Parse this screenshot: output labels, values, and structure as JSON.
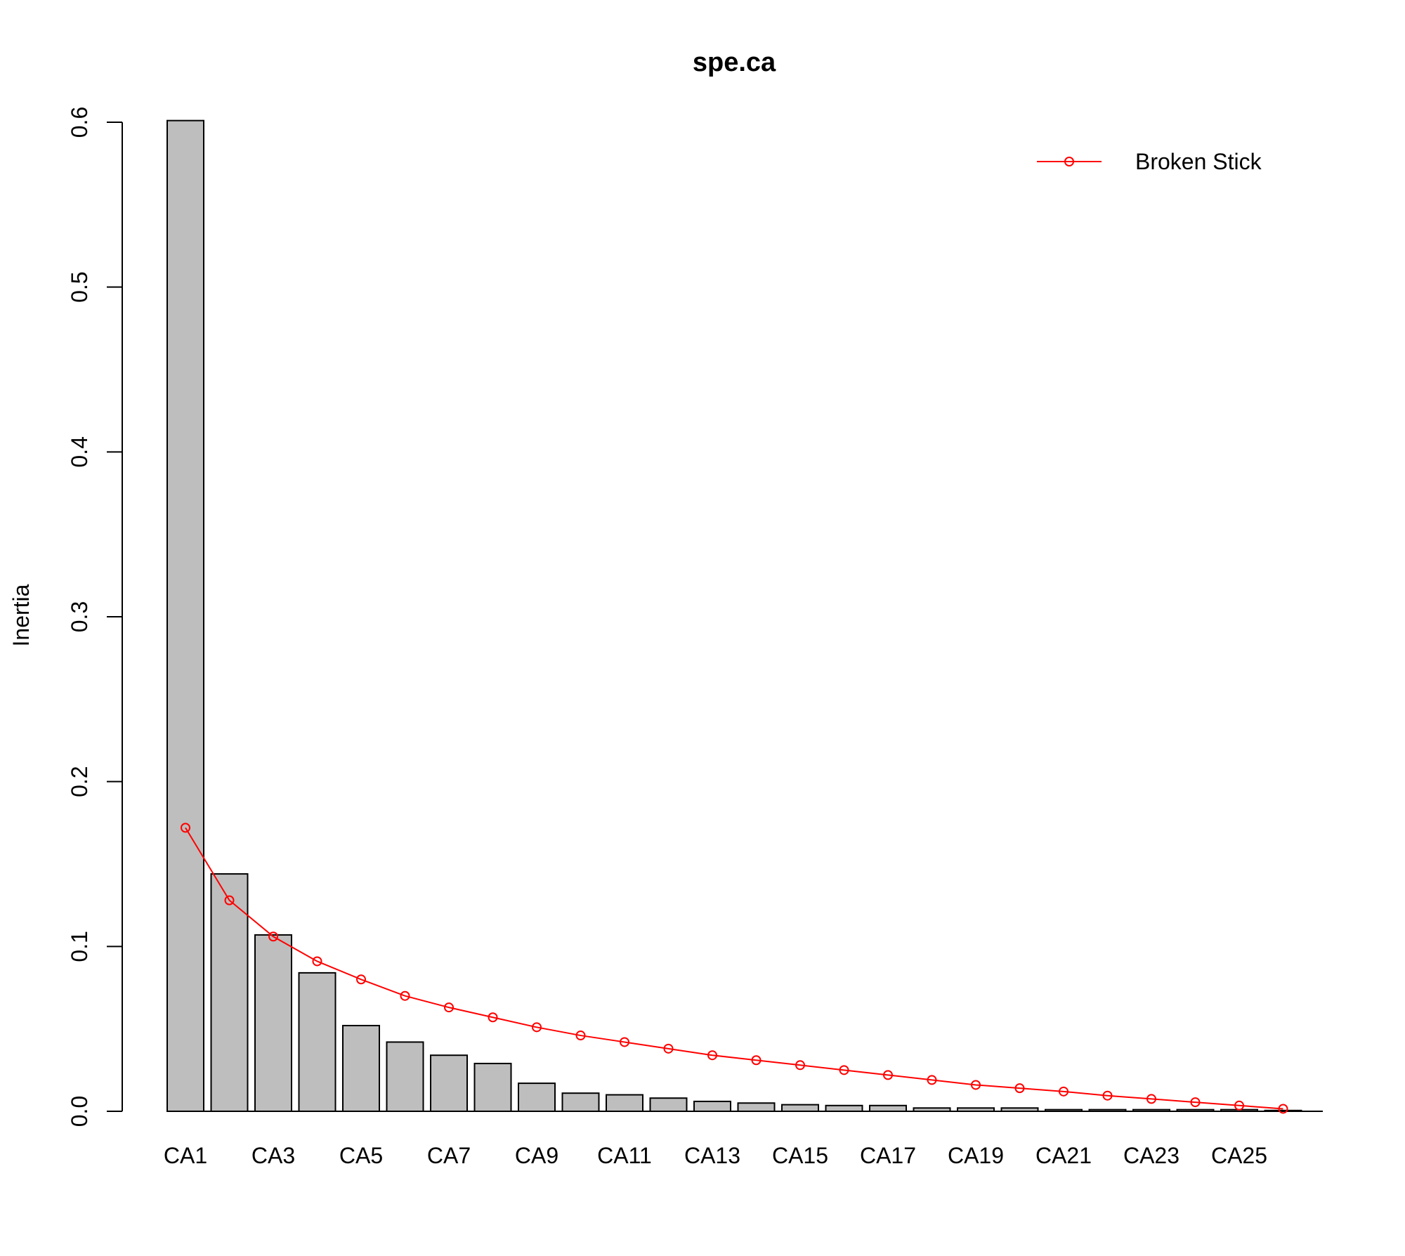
{
  "chart_data": {
    "type": "bar",
    "title": "spe.ca",
    "xlabel": "",
    "ylabel": "Inertia",
    "ylim": [
      0,
      0.6
    ],
    "yticks": [
      0.0,
      0.1,
      0.2,
      0.3,
      0.4,
      0.5,
      0.6
    ],
    "ytick_labels": [
      "0.0",
      "0.1",
      "0.2",
      "0.3",
      "0.4",
      "0.5",
      "0.6"
    ],
    "categories": [
      "CA1",
      "CA2",
      "CA3",
      "CA4",
      "CA5",
      "CA6",
      "CA7",
      "CA8",
      "CA9",
      "CA10",
      "CA11",
      "CA12",
      "CA13",
      "CA14",
      "CA15",
      "CA16",
      "CA17",
      "CA18",
      "CA19",
      "CA20",
      "CA21",
      "CA22",
      "CA23",
      "CA24",
      "CA25",
      "CA26"
    ],
    "x_tick_labels_shown": [
      "CA1",
      "CA3",
      "CA5",
      "CA7",
      "CA9",
      "CA11",
      "CA13",
      "CA15",
      "CA17",
      "CA19",
      "CA21",
      "CA23",
      "CA25"
    ],
    "values": [
      0.601,
      0.144,
      0.107,
      0.084,
      0.052,
      0.042,
      0.034,
      0.029,
      0.017,
      0.011,
      0.01,
      0.008,
      0.006,
      0.005,
      0.004,
      0.0035,
      0.0035,
      0.002,
      0.002,
      0.002,
      0.001,
      0.001,
      0.001,
      0.001,
      0.001,
      0.0005
    ],
    "series": [
      {
        "name": "Broken Stick",
        "type": "line",
        "color": "#ff0000",
        "values": [
          0.172,
          0.128,
          0.106,
          0.091,
          0.08,
          0.07,
          0.063,
          0.057,
          0.051,
          0.046,
          0.042,
          0.038,
          0.034,
          0.031,
          0.028,
          0.025,
          0.022,
          0.019,
          0.016,
          0.014,
          0.012,
          0.0095,
          0.0075,
          0.0055,
          0.0035,
          0.0015
        ]
      }
    ],
    "bar_color": "#bebebe",
    "grid": false,
    "legend_position": "top-right",
    "legend_entries": [
      "Broken Stick"
    ]
  }
}
